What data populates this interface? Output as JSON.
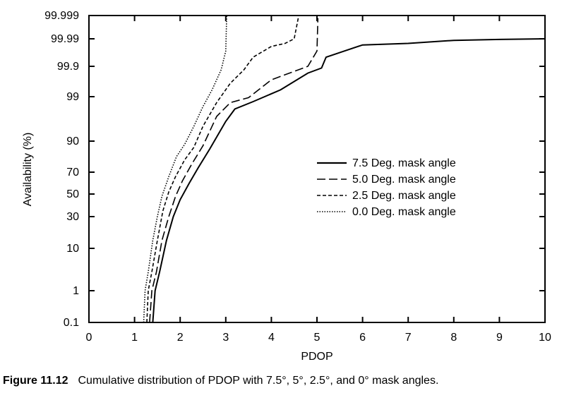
{
  "caption": {
    "figure_number": "Figure 11.12",
    "text": "Cumulative distribution of PDOP with 7.5°, 5°, 2.5°, and 0° mask angles."
  },
  "chart_data": {
    "type": "line",
    "xlabel": "PDOP",
    "ylabel": "Availability (%)",
    "xlim": [
      0,
      10
    ],
    "x_ticks": [
      "0",
      "1",
      "2",
      "3",
      "4",
      "5",
      "6",
      "7",
      "8",
      "9",
      "10"
    ],
    "y_ticks": [
      "0.1",
      "1",
      "10",
      "30",
      "50",
      "70",
      "90",
      "99",
      "99.9",
      "99.99",
      "99.999"
    ],
    "y_scale": "probability",
    "grid": false,
    "legend_position": "center-right",
    "series": [
      {
        "name": "7.5 Deg. mask angle",
        "dash": "solid",
        "points": [
          [
            1.4,
            0.1
          ],
          [
            1.45,
            1
          ],
          [
            1.55,
            5
          ],
          [
            1.7,
            15
          ],
          [
            1.85,
            30
          ],
          [
            2.0,
            45
          ],
          [
            2.2,
            60
          ],
          [
            2.4,
            73
          ],
          [
            2.65,
            85
          ],
          [
            3.0,
            94
          ],
          [
            3.2,
            96.5
          ],
          [
            3.6,
            98
          ],
          [
            4.2,
            99.2
          ],
          [
            4.8,
            99.7
          ],
          [
            5.1,
            99.85
          ],
          [
            5.2,
            99.93
          ],
          [
            5.6,
            99.95
          ],
          [
            6.0,
            99.97
          ],
          [
            7.0,
            99.975
          ],
          [
            8.0,
            99.985
          ],
          [
            9.0,
            99.988
          ],
          [
            10.0,
            99.99
          ]
        ]
      },
      {
        "name": "5.0 Deg. mask angle",
        "dash": "long-dash",
        "points": [
          [
            1.33,
            0.1
          ],
          [
            1.38,
            1
          ],
          [
            1.48,
            5
          ],
          [
            1.6,
            15
          ],
          [
            1.75,
            30
          ],
          [
            1.9,
            48
          ],
          [
            2.05,
            62
          ],
          [
            2.25,
            75
          ],
          [
            2.5,
            87
          ],
          [
            2.8,
            95
          ],
          [
            3.1,
            97.8
          ],
          [
            3.5,
            98.8
          ],
          [
            4.0,
            99.5
          ],
          [
            4.5,
            99.75
          ],
          [
            4.8,
            99.9
          ],
          [
            5.0,
            99.95
          ],
          [
            5.02,
            99.998
          ]
        ]
      },
      {
        "name": "2.5 Deg. mask angle",
        "dash": "short-dash",
        "points": [
          [
            1.27,
            0.1
          ],
          [
            1.3,
            1
          ],
          [
            1.38,
            5
          ],
          [
            1.5,
            15
          ],
          [
            1.62,
            35
          ],
          [
            1.75,
            52
          ],
          [
            1.9,
            66
          ],
          [
            2.1,
            78
          ],
          [
            2.3,
            86
          ],
          [
            2.5,
            93
          ],
          [
            2.8,
            97.8
          ],
          [
            3.1,
            99.4
          ],
          [
            3.4,
            99.8
          ],
          [
            3.6,
            99.93
          ],
          [
            4.0,
            99.965
          ],
          [
            4.3,
            99.975
          ],
          [
            4.5,
            99.99
          ],
          [
            4.6,
            99.999
          ]
        ]
      },
      {
        "name": "0.0 Deg. mask angle",
        "dash": "dotted",
        "points": [
          [
            1.2,
            0.1
          ],
          [
            1.23,
            1
          ],
          [
            1.3,
            5
          ],
          [
            1.4,
            15
          ],
          [
            1.5,
            30
          ],
          [
            1.6,
            48
          ],
          [
            1.75,
            66
          ],
          [
            1.92,
            80
          ],
          [
            2.1,
            88
          ],
          [
            2.3,
            93
          ],
          [
            2.5,
            97
          ],
          [
            2.7,
            99.2
          ],
          [
            2.9,
            99.8
          ],
          [
            3.0,
            99.95
          ],
          [
            3.02,
            99.999
          ]
        ]
      }
    ]
  }
}
